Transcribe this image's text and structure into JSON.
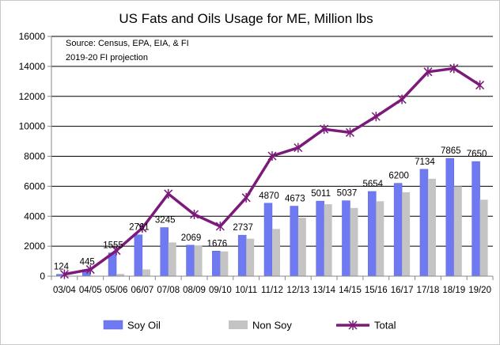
{
  "chart_data": {
    "type": "bar",
    "title": "US Fats and Oils Usage for ME, Million lbs",
    "annotations": [
      "Source: Census, EPA, EIA, & FI",
      "2019-20 FI projection"
    ],
    "xlabel": "",
    "ylabel": "",
    "ylim": [
      0,
      16000
    ],
    "yticks": [
      "0",
      "2000",
      "4000",
      "6000",
      "8000",
      "10000",
      "12000",
      "14000",
      "16000"
    ],
    "grid": true,
    "legend_position": "bottom",
    "categories": [
      "03/04",
      "04/05",
      "05/06",
      "06/07",
      "07/08",
      "08/09",
      "09/10",
      "10/11",
      "11/12",
      "12/13",
      "13/14",
      "14/15",
      "15/16",
      "16/17",
      "17/18",
      "18/19",
      "19/20"
    ],
    "series": [
      {
        "name": "Soy Oil",
        "type": "bar",
        "color": "#6f79f2",
        "values": [
          124,
          445,
          1555,
          2761,
          3245,
          2069,
          1676,
          2737,
          4870,
          4673,
          5011,
          5037,
          5654,
          6200,
          7134,
          7865,
          7650
        ],
        "labels": [
          "124",
          "445",
          "1555",
          "2761",
          "3245",
          "2069",
          "1676",
          "2737",
          "4870",
          "4673",
          "5011",
          "5037",
          "5654",
          "6200",
          "7134",
          "7865",
          "7650"
        ]
      },
      {
        "name": "Non Soy",
        "type": "bar",
        "color": "#c4c4c4",
        "values": [
          0,
          0,
          150,
          450,
          2250,
          2050,
          1650,
          2500,
          3150,
          3900,
          4800,
          4550,
          5000,
          5600,
          6500,
          6000,
          5100
        ]
      },
      {
        "name": "Total",
        "type": "line",
        "color": "#7b1a7a",
        "values": [
          124,
          445,
          1705,
          3211,
          5495,
          4119,
          3326,
          5237,
          8020,
          8573,
          9811,
          9587,
          10654,
          11800,
          13634,
          13865,
          12750
        ]
      }
    ]
  }
}
